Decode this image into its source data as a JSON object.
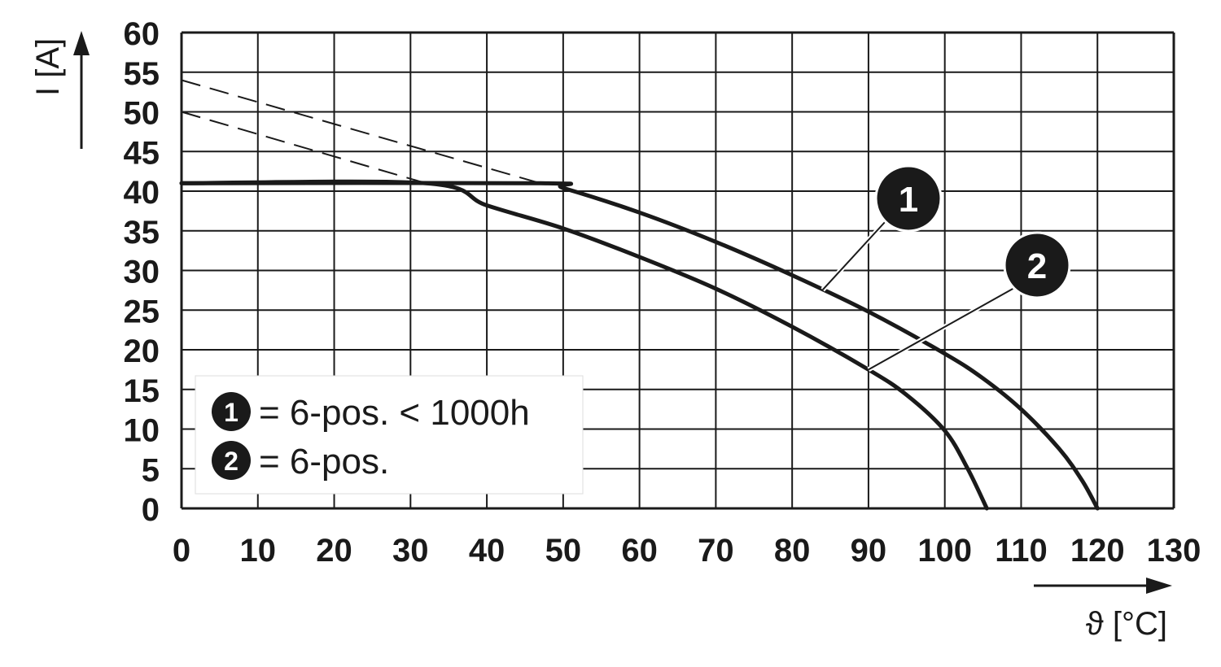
{
  "chart_data": {
    "type": "line",
    "xlabel": "ϑ [°C]",
    "ylabel": "I [A]",
    "xlim": [
      0,
      130
    ],
    "ylim": [
      0,
      60
    ],
    "x_ticks": [
      "0",
      "10",
      "20",
      "30",
      "40",
      "50",
      "60",
      "70",
      "80",
      "90",
      "100",
      "110",
      "120",
      "130"
    ],
    "y_ticks": [
      "0",
      "5",
      "10",
      "15",
      "20",
      "25",
      "30",
      "35",
      "40",
      "45",
      "50",
      "55",
      "60"
    ],
    "grid": true,
    "series": [
      {
        "marker": "1",
        "x": [
          0,
          47,
          50,
          60,
          70,
          80,
          90,
          100,
          105,
          110,
          115,
          118,
          120
        ],
        "y": [
          41,
          41,
          40.4,
          37.3,
          33.6,
          29.4,
          24.8,
          19.5,
          16.4,
          12.5,
          7.5,
          3.5,
          0
        ]
      },
      {
        "marker": "2",
        "x": [
          0,
          32,
          40,
          50,
          60,
          70,
          80,
          90,
          95,
          100,
          103,
          105.5
        ],
        "y": [
          41,
          41,
          38.2,
          35.3,
          31.7,
          27.7,
          22.9,
          17.5,
          14.3,
          9.8,
          5,
          0
        ]
      }
    ],
    "dashed_extensions": [
      {
        "x": [
          0,
          47
        ],
        "y": [
          54,
          41
        ]
      },
      {
        "x": [
          0,
          32
        ],
        "y": [
          50,
          41
        ]
      }
    ],
    "legend": {
      "placement": "bottom-left",
      "entries": [
        {
          "marker": "1",
          "text": "= 6-pos. < 1000h"
        },
        {
          "marker": "2",
          "text": "= 6-pos."
        }
      ]
    },
    "callouts": [
      {
        "marker": "1",
        "series_index": 0,
        "point_x": 84
      },
      {
        "marker": "2",
        "series_index": 1,
        "point_x": 90
      }
    ],
    "colors": {
      "curve": "#1a1a1a",
      "grid": "#1a1a1a",
      "marker_fill": "#1a1a1a",
      "marker_text": "#ffffff"
    }
  }
}
